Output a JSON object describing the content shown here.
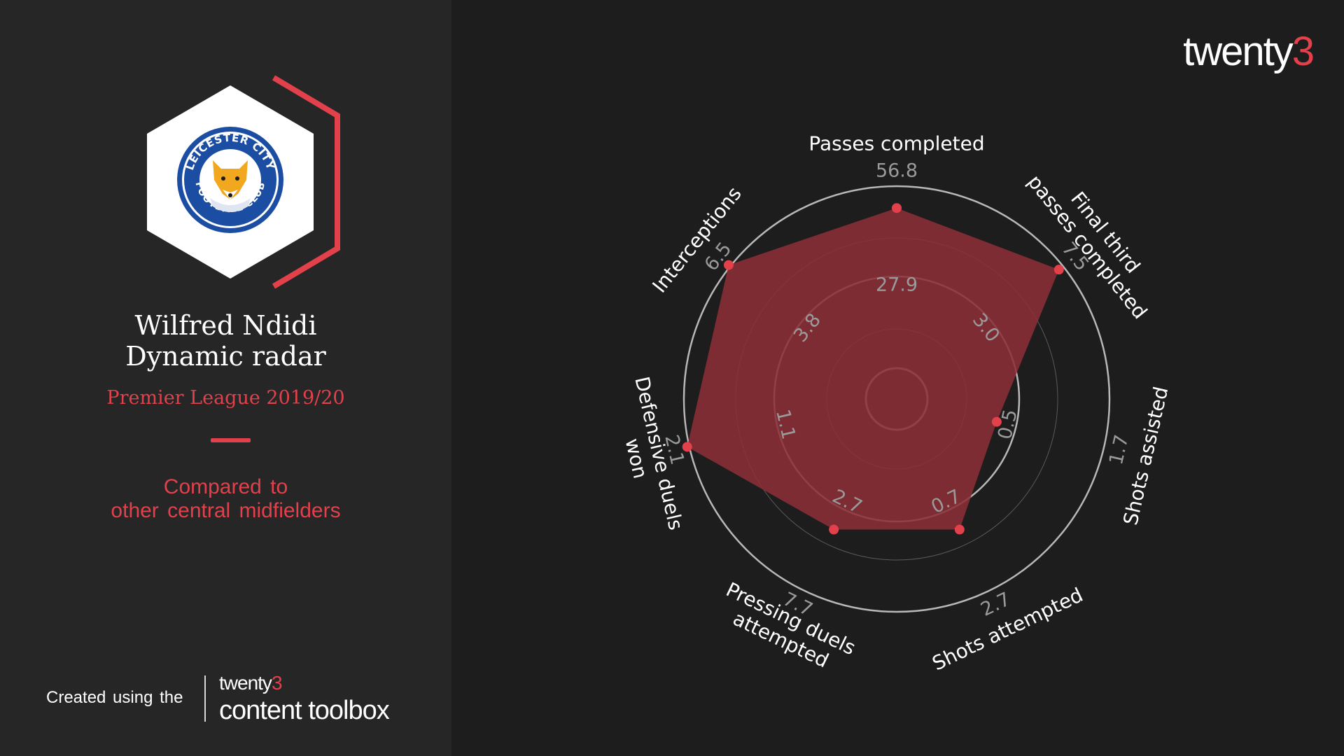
{
  "branding": {
    "logo_text": "twenty",
    "logo_accent": "3",
    "accent_color": "#e2414c"
  },
  "sidebar": {
    "badge_text_top": "LEICESTER CITY",
    "badge_text_bottom": "FOOTBALL CLUB",
    "player_name": "Wilfred Ndidi",
    "chart_title": "Dynamic radar",
    "league": "Premier League 2019/20",
    "compare_line1": "Compared to",
    "compare_line2": "other central midfielders"
  },
  "footer": {
    "created_text": "Created using the",
    "brand_text": "twenty",
    "brand_accent": "3",
    "product_text": "content toolbox"
  },
  "chart_data": {
    "type": "radar",
    "grid": true,
    "fill_color": "#8b2f38",
    "point_color": "#e2414c",
    "axes": [
      {
        "label": [
          "Passes completed"
        ],
        "tick_inner": "27.9",
        "tick_outer": "56.8",
        "value": 0.87
      },
      {
        "label": [
          "Final third",
          "passes completed"
        ],
        "tick_inner": "3.0",
        "tick_outer": "7.5",
        "value": 0.96
      },
      {
        "label": [
          "Shots assisted"
        ],
        "tick_inner": "0.5",
        "tick_outer": "1.7",
        "value": 0.39
      },
      {
        "label": [
          "Shots attempted"
        ],
        "tick_inner": "0.7",
        "tick_outer": "2.7",
        "value": 0.62
      },
      {
        "label": [
          "Pressing duels",
          "attempted"
        ],
        "tick_inner": "2.7",
        "tick_outer": "7.7",
        "value": 0.62
      },
      {
        "label": [
          "Defensive duels",
          "won"
        ],
        "tick_inner": "1.1",
        "tick_outer": "2.1",
        "value": 1.0
      },
      {
        "label": [
          "Interceptions"
        ],
        "tick_inner": "3.8",
        "tick_outer": "6.5",
        "value": 1.0
      }
    ]
  }
}
